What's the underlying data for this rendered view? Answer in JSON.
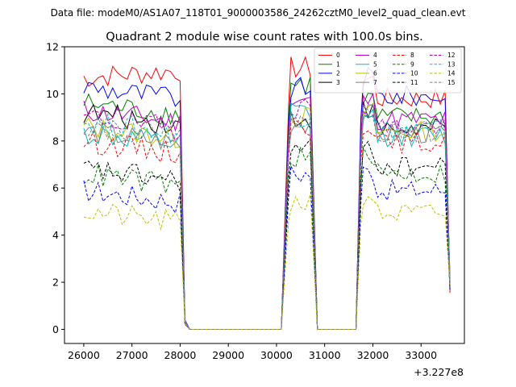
{
  "header": {
    "data_file": "Data file: modeM0/AS1A07_118T01_9000003586_24262cztM0_level2_quad_clean.evt"
  },
  "chart_data": {
    "type": "line",
    "title": "Quadrant 2 module wise count rates with 100.0s bins.",
    "xlabel": "",
    "ylabel": "",
    "x_offset_label": "+3.227e8",
    "xlim": [
      25600,
      33900
    ],
    "ylim": [
      -0.6,
      12
    ],
    "xticks": [
      26000,
      27000,
      28000,
      29000,
      30000,
      31000,
      32000,
      33000
    ],
    "xtick_labels": [
      "26000",
      "27000",
      "28000",
      "29000",
      "30000",
      "31000",
      "32000",
      "33000"
    ],
    "yticks": [
      0,
      2,
      4,
      6,
      8,
      10,
      12
    ],
    "ytick_labels": [
      "0",
      "2",
      "4",
      "6",
      "8",
      "10",
      "12"
    ],
    "grid": false,
    "legend_position": "upper-right",
    "legend_columns": 4,
    "segments": [
      {
        "on": 26000,
        "peak_end": 28000,
        "fall": 28100,
        "flat_end": 30150
      },
      {
        "rise": 30250,
        "peak_start": 30300,
        "peak_end": 30750,
        "fall": 30850,
        "flat_end": 31650
      },
      {
        "rise": 31750,
        "peak_start": 31800,
        "peak_end": 33500,
        "fall": 33600
      }
    ],
    "series": [
      {
        "name": "0",
        "color": "#ff0000",
        "dash": "solid",
        "level": 10.7,
        "seg2_level": 11.1,
        "seg3_level": 9.8
      },
      {
        "name": "1",
        "color": "#008000",
        "dash": "solid",
        "level": 9.6,
        "seg2_level": 10.4,
        "seg3_level": 9.0
      },
      {
        "name": "2",
        "color": "#0000ff",
        "dash": "solid",
        "level": 10.3,
        "seg2_level": 10.2,
        "seg3_level": 9.9
      },
      {
        "name": "3",
        "color": "#000000",
        "dash": "solid",
        "level": 9.2,
        "seg2_level": 9.0,
        "seg3_level": 8.5
      },
      {
        "name": "4",
        "color": "#bf00bf",
        "dash": "solid",
        "level": 9.3,
        "seg2_level": 9.7,
        "seg3_level": 8.9
      },
      {
        "name": "5",
        "color": "#00bfbf",
        "dash": "solid",
        "level": 8.3,
        "seg2_level": 9.2,
        "seg3_level": 8.2
      },
      {
        "name": "6",
        "color": "#bfbf00",
        "dash": "solid",
        "level": 8.6,
        "seg2_level": 9.0,
        "seg3_level": 8.4
      },
      {
        "name": "7",
        "color": "#808080",
        "dash": "solid",
        "level": 8.4,
        "seg2_level": 8.8,
        "seg3_level": 8.3
      },
      {
        "name": "8",
        "color": "#ff0000",
        "dash": "dashed",
        "level": 8.0,
        "seg2_level": 8.6,
        "seg3_level": 7.9
      },
      {
        "name": "9",
        "color": "#008000",
        "dash": "dashed",
        "level": 6.6,
        "seg2_level": 7.3,
        "seg3_level": 6.6
      },
      {
        "name": "10",
        "color": "#0000ff",
        "dash": "dashed",
        "level": 5.9,
        "seg2_level": 6.6,
        "seg3_level": 5.9
      },
      {
        "name": "11",
        "color": "#000000",
        "dash": "dashed",
        "level": 6.8,
        "seg2_level": 7.6,
        "seg3_level": 6.9
      },
      {
        "name": "12",
        "color": "#bf00bf",
        "dash": "dashed",
        "level": 9.0,
        "seg2_level": 9.4,
        "seg3_level": 8.6
      },
      {
        "name": "13",
        "color": "#00bfbf",
        "dash": "dashed",
        "level": 8.8,
        "seg2_level": 9.1,
        "seg3_level": 8.5
      },
      {
        "name": "14",
        "color": "#bfbf00",
        "dash": "dashed",
        "level": 5.0,
        "seg2_level": 5.4,
        "seg3_level": 4.9
      },
      {
        "name": "15",
        "color": "#808080",
        "dash": "dashed",
        "level": 8.7,
        "seg2_level": 9.0,
        "seg3_level": 8.4
      }
    ]
  }
}
